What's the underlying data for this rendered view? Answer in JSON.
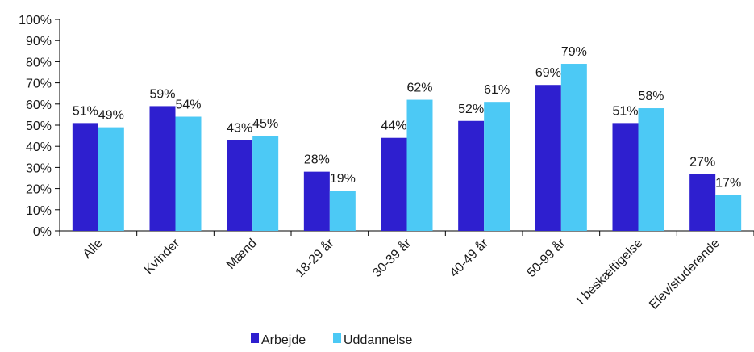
{
  "chart_data": {
    "type": "bar",
    "categories": [
      "Alle",
      "Kvinder",
      "Mænd",
      "18-29 år",
      "30-39 år",
      "40-49 år",
      "50-99 år",
      "I beskæftigelse",
      "Elev/studerende"
    ],
    "series": [
      {
        "name": "Arbejde",
        "color": "#2e1fcf",
        "values": [
          51,
          59,
          43,
          28,
          44,
          52,
          69,
          51,
          27
        ],
        "labels": [
          "51%",
          "59%",
          "43%",
          "28%",
          "44%",
          "52%",
          "69%",
          "51%",
          "27%"
        ]
      },
      {
        "name": "Uddannelse",
        "color": "#4cc9f5",
        "values": [
          49,
          54,
          45,
          19,
          62,
          61,
          79,
          58,
          17
        ],
        "labels": [
          "49%",
          "54%",
          "45%",
          "19%",
          "62%",
          "61%",
          "79%",
          "58%",
          "17%"
        ]
      }
    ],
    "yticks": [
      "0%",
      "10%",
      "20%",
      "30%",
      "40%",
      "50%",
      "60%",
      "70%",
      "80%",
      "90%",
      "100%"
    ],
    "ylim": [
      0,
      100
    ],
    "grid": false,
    "legend_position": "bottom-center",
    "title": "",
    "xlabel": "",
    "ylabel": ""
  }
}
